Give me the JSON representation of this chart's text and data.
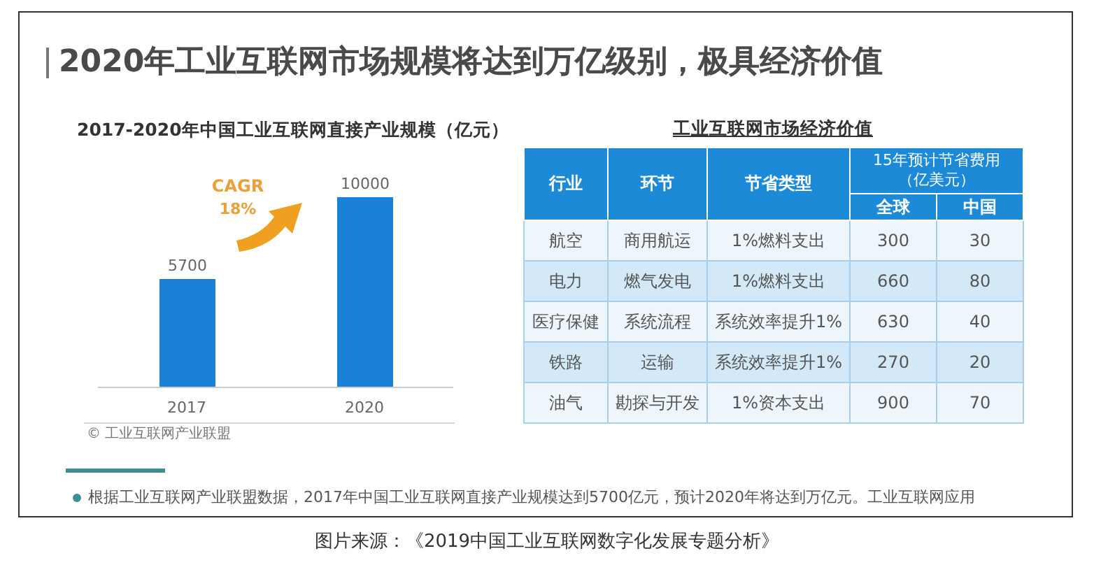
{
  "chart_data": [
    {
      "type": "bar",
      "title": "2020年工业互联网市场规模将达到万亿级别，极具经济价值",
      "subtitle": "2017-2020年中国工业互联网直接产业规模（亿元）",
      "categories": [
        "2017",
        "2020"
      ],
      "values": [
        5700,
        10000
      ],
      "color": "#1a80d6",
      "data_labels": true,
      "tick_labels": "x",
      "annotations": [
        "CAGR",
        "18%",
        "© 工业互联网产业联盟",
        "根据工业互联网产业联盟数据，2017年中国工业互联网直接产业规模达到5700亿元，预计2020年将达到万亿元。工业互联网应用",
        "图片来源：《2019中国工业互联网数字化发展专题分析》"
      ]
    },
    {
      "type": "heatmap",
      "title": "工业互联网市场经济价值",
      "ylabel": "行业",
      "categories": [
        "环节"
      ],
      "y_categories": [
        "航空",
        "电力",
        "医疗保健",
        "铁路",
        "油气"
      ],
      "cells": [
        [
          null
        ],
        [
          null
        ],
        [
          null
        ],
        [
          null
        ],
        [
          null
        ]
      ],
      "cell_labels": [
        [
          "商用航运"
        ],
        [
          "燃气发电"
        ],
        [
          "系统流程"
        ],
        [
          "运输"
        ],
        [
          "勘探与开发"
        ]
      ]
    },
    {
      "type": "heatmap",
      "ylabel": "节省类型",
      "categories": [
        "全球",
        "中国"
      ],
      "y_categories": [
        "1%燃料支出",
        "1%燃料支出",
        "系统效率提升1%",
        "系统效率提升1%",
        "1%资本支出"
      ],
      "cells": [
        [
          300,
          30
        ],
        [
          660,
          80
        ],
        [
          630,
          40
        ],
        [
          270,
          20
        ],
        [
          900,
          70
        ]
      ],
      "data_labels": true,
      "annotations": [
        "15年预计节省费用（亿美元）"
      ]
    }
  ]
}
